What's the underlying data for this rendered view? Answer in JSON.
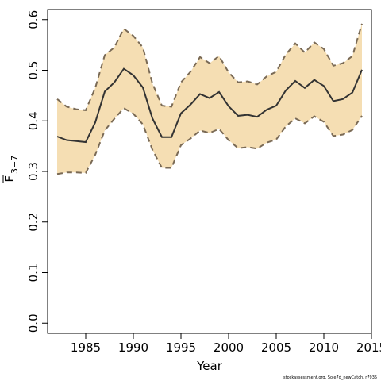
{
  "chart_data": {
    "type": "line",
    "title": "",
    "xlabel": "Year",
    "ylabel_main": "F",
    "ylabel_sub": "3−7",
    "xlim": [
      1981,
      2015
    ],
    "ylim": [
      -0.02,
      0.62
    ],
    "x_ticks": [
      "1985",
      "1990",
      "1995",
      "2000",
      "2005",
      "2010",
      "2015"
    ],
    "y_ticks": [
      "0.0",
      "0.1",
      "0.2",
      "0.3",
      "0.4",
      "0.5",
      "0.6"
    ],
    "x": [
      1982,
      1983,
      1984,
      1985,
      1986,
      1987,
      1988,
      1989,
      1990,
      1991,
      1992,
      1993,
      1994,
      1995,
      1996,
      1997,
      1998,
      1999,
      2000,
      2001,
      2002,
      2003,
      2004,
      2005,
      2006,
      2007,
      2008,
      2009,
      2010,
      2011,
      2012,
      2013,
      2014
    ],
    "series": [
      {
        "role": "estimate",
        "values": [
          0.369,
          0.362,
          0.36,
          0.358,
          0.397,
          0.458,
          0.476,
          0.503,
          0.49,
          0.466,
          0.405,
          0.368,
          0.368,
          0.415,
          0.432,
          0.453,
          0.445,
          0.457,
          0.429,
          0.41,
          0.412,
          0.408,
          0.422,
          0.43,
          0.46,
          0.479,
          0.465,
          0.481,
          0.469,
          0.439,
          0.443,
          0.456,
          0.501
        ]
      },
      {
        "role": "upper",
        "values": [
          0.443,
          0.428,
          0.423,
          0.421,
          0.465,
          0.53,
          0.545,
          0.582,
          0.568,
          0.545,
          0.474,
          0.43,
          0.428,
          0.476,
          0.497,
          0.526,
          0.514,
          0.528,
          0.496,
          0.476,
          0.478,
          0.472,
          0.488,
          0.497,
          0.531,
          0.553,
          0.535,
          0.555,
          0.542,
          0.509,
          0.514,
          0.528,
          0.592
        ]
      },
      {
        "role": "lower",
        "values": [
          0.295,
          0.298,
          0.298,
          0.297,
          0.333,
          0.381,
          0.404,
          0.425,
          0.414,
          0.393,
          0.343,
          0.307,
          0.307,
          0.352,
          0.365,
          0.381,
          0.376,
          0.384,
          0.362,
          0.346,
          0.348,
          0.345,
          0.357,
          0.363,
          0.389,
          0.405,
          0.395,
          0.409,
          0.398,
          0.37,
          0.373,
          0.382,
          0.41
        ]
      }
    ],
    "grid": false,
    "legend": "none",
    "colors": {
      "band": "#f5deb3",
      "line": "#333333",
      "bound": "#7a6a55",
      "axis": "#000000"
    }
  },
  "footnote": "stockassessment.org, Sole7d_newCatch, r7935"
}
